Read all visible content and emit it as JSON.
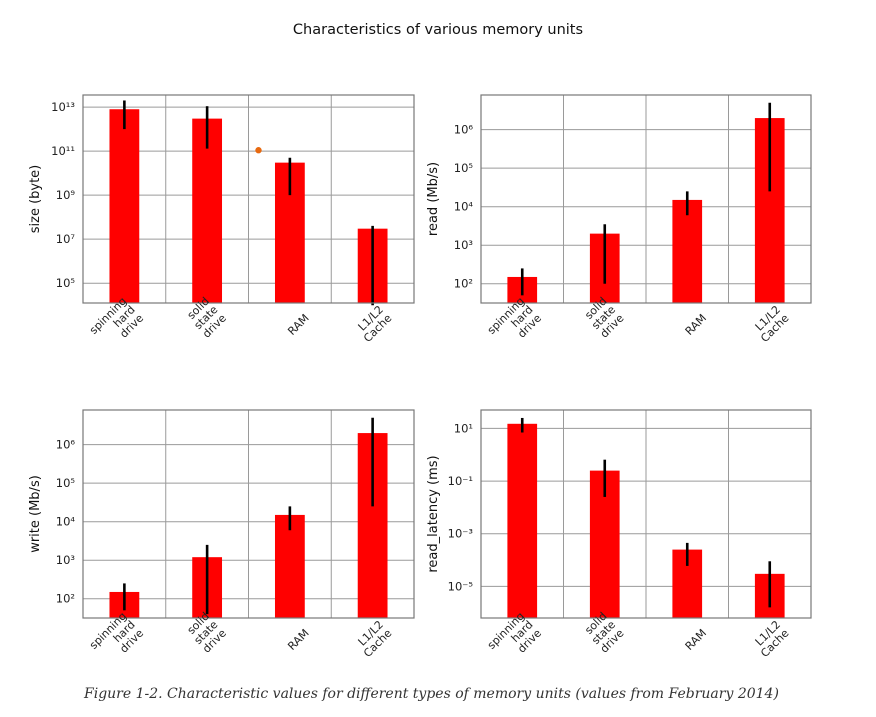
{
  "figure": {
    "title": "Characteristics of various memory units",
    "caption": "Figure 1-2. Characteristic values for different types of memory units (values from February 2014)"
  },
  "chart_data": [
    {
      "type": "bar",
      "scale": "log",
      "ylabel": "size (byte)",
      "categories": [
        "spinning\nhard\ndrive",
        "solid\nstate\ndrive",
        "RAM",
        "L1/L2\nCache"
      ],
      "values": [
        8000000000000.0,
        3000000000000.0,
        30000000000.0,
        30000000.0
      ],
      "error_low": [
        1000000000000.0,
        130000000000.0,
        1000000000.0,
        10000.0
      ],
      "error_high": [
        20000000000000.0,
        11000000000000.0,
        50000000000.0,
        40000000.0
      ],
      "yticks": [
        5,
        7,
        9,
        11,
        13
      ],
      "ylim_exp": [
        4.1,
        13.55
      ],
      "annotation_point": {
        "x": 2.0,
        "y": 110000000000.0,
        "color": "#e8690f"
      },
      "grid": true,
      "color": "#ff0000"
    },
    {
      "type": "bar",
      "scale": "log",
      "ylabel": "read (Mb/s)",
      "categories": [
        "spinning\nhard\ndrive",
        "solid\nstate\ndrive",
        "RAM",
        "L1/L2\nCache"
      ],
      "values": [
        150,
        2000,
        15000,
        2000000
      ],
      "error_low": [
        50,
        100,
        6000,
        25000
      ],
      "error_high": [
        250,
        3500,
        25000,
        5000000
      ],
      "yticks": [
        2,
        3,
        4,
        5,
        6
      ],
      "ylim_exp": [
        1.5,
        6.9
      ],
      "grid": true,
      "color": "#ff0000"
    },
    {
      "type": "bar",
      "scale": "log",
      "ylabel": "write (Mb/s)",
      "categories": [
        "spinning\nhard\ndrive",
        "solid\nstate\ndrive",
        "RAM",
        "L1/L2\nCache"
      ],
      "values": [
        150,
        1200,
        15000,
        2000000
      ],
      "error_low": [
        50,
        40,
        6000,
        25000
      ],
      "error_high": [
        250,
        2500,
        25000,
        5000000
      ],
      "yticks": [
        2,
        3,
        4,
        5,
        6
      ],
      "ylim_exp": [
        1.5,
        6.9
      ],
      "grid": true,
      "color": "#ff0000"
    },
    {
      "type": "bar",
      "scale": "log",
      "ylabel": "read_latency (ms)",
      "categories": [
        "spinning\nhard\ndrive",
        "solid\nstate\ndrive",
        "RAM",
        "L1/L2\nCache"
      ],
      "values": [
        15,
        0.25,
        0.00025,
        3e-05
      ],
      "error_low": [
        7,
        0.025,
        6e-05,
        1.6e-06
      ],
      "error_high": [
        25,
        0.65,
        0.00045,
        9e-05
      ],
      "yticks": [
        -5,
        -3,
        -1,
        1
      ],
      "ylim_exp": [
        -6.2,
        1.7
      ],
      "grid": true,
      "color": "#ff0000"
    }
  ]
}
